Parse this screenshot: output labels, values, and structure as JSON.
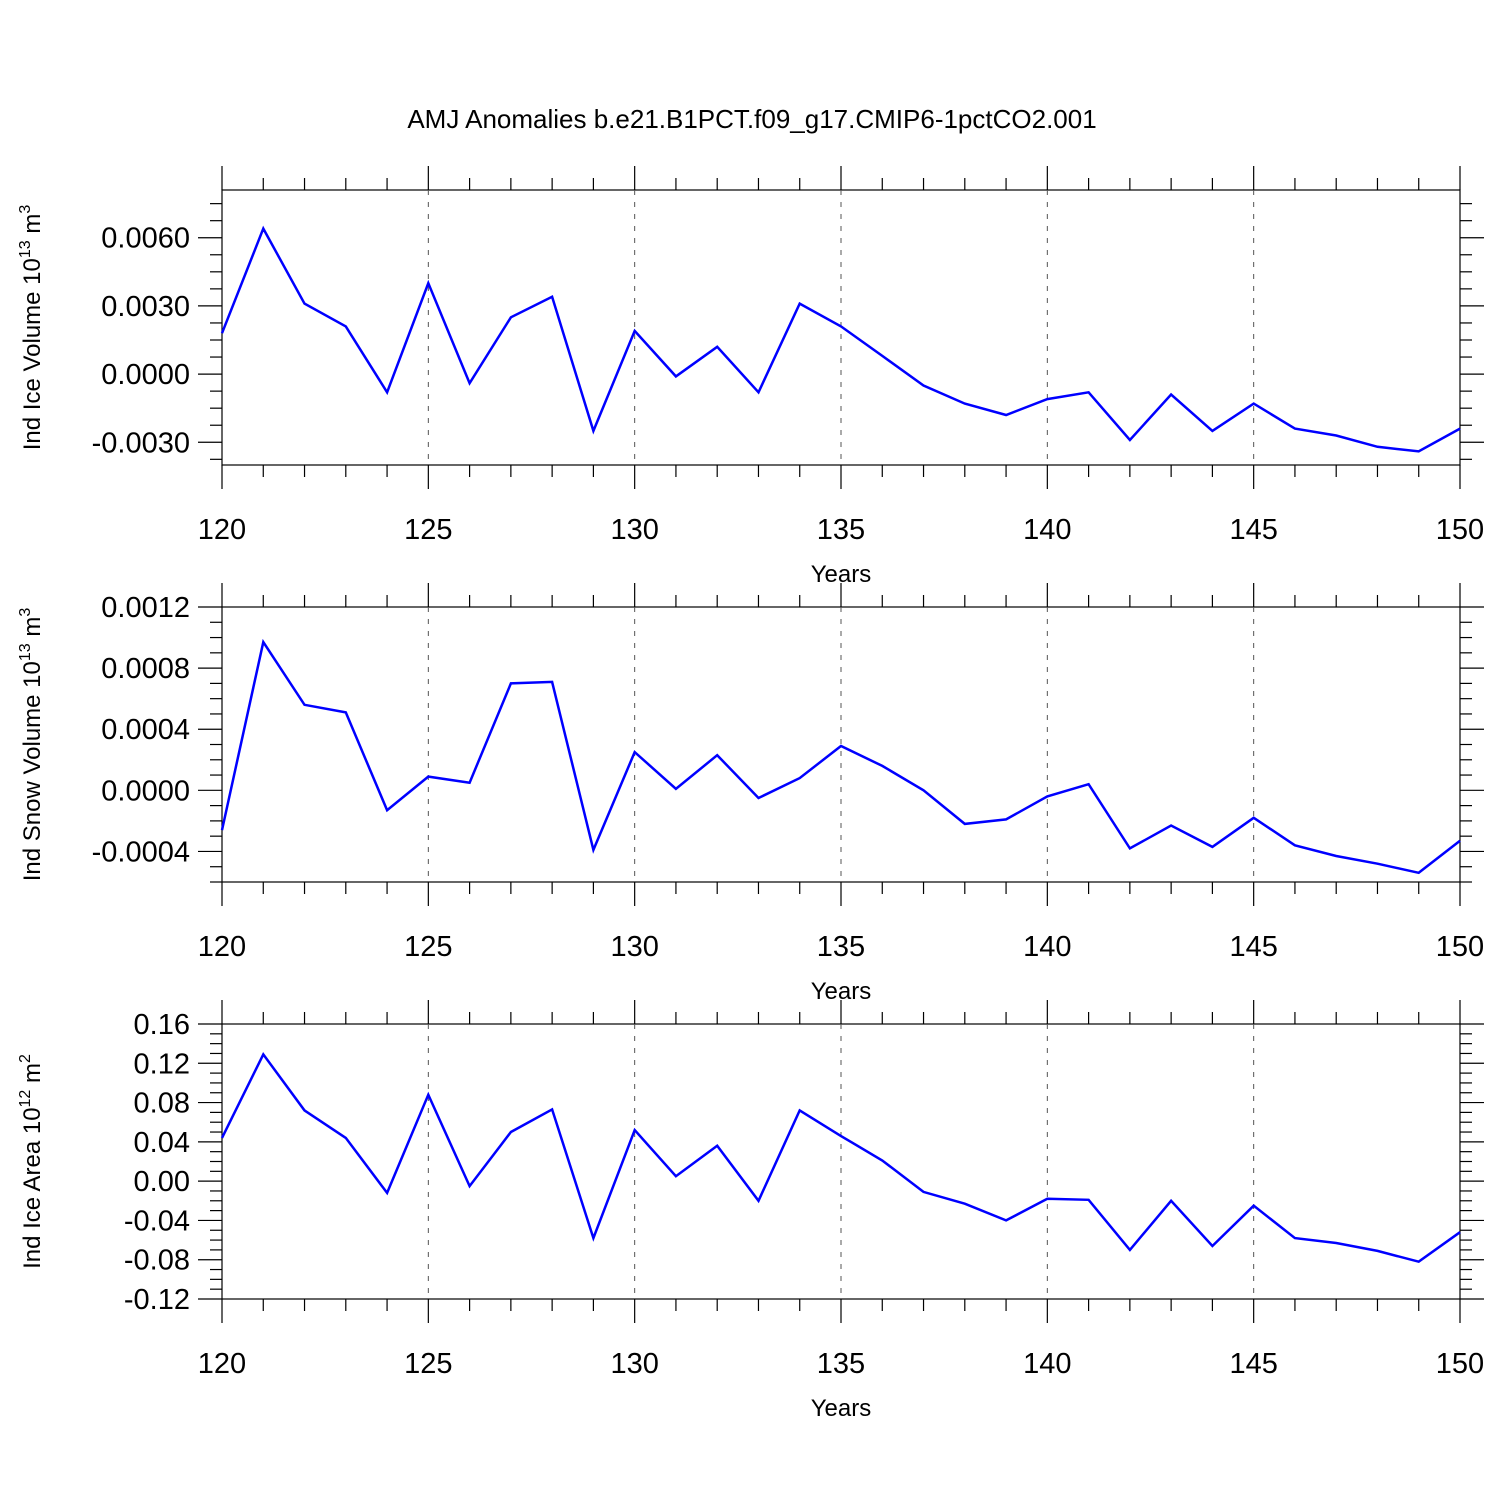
{
  "title": "AMJ Anomalies b.e21.B1PCT.f09_g17.CMIP6-1pctCO2.001",
  "colors": {
    "series": "#0000ff",
    "grid": "#555555",
    "frame": "#000000"
  },
  "chart_data": [
    {
      "type": "line",
      "title": "",
      "xlabel": "Years",
      "ylabel_main": "Ind Ice Volume 10",
      "ylabel_exp": "13",
      "ylabel_unit": " m",
      "ylabel_unit_exp": "3",
      "xlim": [
        120,
        150
      ],
      "ylim": [
        -0.004,
        0.0081
      ],
      "x_ticks": [
        "120",
        "125",
        "130",
        "135",
        "140",
        "145",
        "150"
      ],
      "y_ticks": [
        {
          "value": 0.006,
          "label": "0.0060"
        },
        {
          "value": 0.003,
          "label": "0.0030"
        },
        {
          "value": 0.0,
          "label": "0.0000"
        },
        {
          "value": -0.003,
          "label": "-0.0030"
        }
      ],
      "grid": "vertical dashed at major x ticks",
      "x": [
        120,
        121,
        122,
        123,
        124,
        125,
        126,
        127,
        128,
        129,
        130,
        131,
        132,
        133,
        134,
        135,
        136,
        137,
        138,
        139,
        140,
        141,
        142,
        143,
        144,
        145,
        146,
        147,
        148,
        149,
        150
      ],
      "values": [
        0.0018,
        0.0064,
        0.0031,
        0.0021,
        -0.0008,
        0.004,
        -0.0004,
        0.0025,
        0.0034,
        -0.0025,
        0.0019,
        -0.0001,
        0.0012,
        -0.0008,
        0.0031,
        0.0021,
        0.0008,
        -0.0005,
        -0.0013,
        -0.0018,
        -0.0011,
        -0.0008,
        -0.0029,
        -0.0009,
        -0.0025,
        -0.0013,
        -0.0024,
        -0.0027,
        -0.0032,
        -0.0034,
        -0.0024
      ]
    },
    {
      "type": "line",
      "title": "",
      "xlabel": "Years",
      "ylabel_main": "Ind Snow Volume 10",
      "ylabel_exp": "13",
      "ylabel_unit": " m",
      "ylabel_unit_exp": "3",
      "xlim": [
        120,
        150
      ],
      "ylim": [
        -0.0006,
        0.0012
      ],
      "x_ticks": [
        "120",
        "125",
        "130",
        "135",
        "140",
        "145",
        "150"
      ],
      "y_ticks": [
        {
          "value": 0.0012,
          "label": "0.0012"
        },
        {
          "value": 0.0008,
          "label": "0.0008"
        },
        {
          "value": 0.0004,
          "label": "0.0004"
        },
        {
          "value": 0.0,
          "label": "0.0000"
        },
        {
          "value": -0.0004,
          "label": "-0.0004"
        }
      ],
      "grid": "vertical dashed at major x ticks",
      "x": [
        120,
        121,
        122,
        123,
        124,
        125,
        126,
        127,
        128,
        129,
        130,
        131,
        132,
        133,
        134,
        135,
        136,
        137,
        138,
        139,
        140,
        141,
        142,
        143,
        144,
        145,
        146,
        147,
        148,
        149,
        150
      ],
      "values": [
        -0.00026,
        0.00097,
        0.00056,
        0.00051,
        -0.00013,
        9e-05,
        5e-05,
        0.0007,
        0.00071,
        -0.00039,
        0.00025,
        1e-05,
        0.00023,
        -5e-05,
        8e-05,
        0.00029,
        0.00016,
        0.0,
        -0.00022,
        -0.00019,
        -4e-05,
        4e-05,
        -0.00038,
        -0.00023,
        -0.00037,
        -0.00018,
        -0.00036,
        -0.00043,
        -0.00048,
        -0.00054,
        -0.00033
      ]
    },
    {
      "type": "line",
      "title": "",
      "xlabel": "Years",
      "ylabel_main": "Ind Ice Area 10",
      "ylabel_exp": "12",
      "ylabel_unit": " m",
      "ylabel_unit_exp": "2",
      "xlim": [
        120,
        150
      ],
      "ylim": [
        -0.12,
        0.16
      ],
      "x_ticks": [
        "120",
        "125",
        "130",
        "135",
        "140",
        "145",
        "150"
      ],
      "y_ticks": [
        {
          "value": 0.16,
          "label": "0.16"
        },
        {
          "value": 0.12,
          "label": "0.12"
        },
        {
          "value": 0.08,
          "label": "0.08"
        },
        {
          "value": 0.04,
          "label": "0.04"
        },
        {
          "value": 0.0,
          "label": "0.00"
        },
        {
          "value": -0.04,
          "label": "-0.04"
        },
        {
          "value": -0.08,
          "label": "-0.08"
        },
        {
          "value": -0.12,
          "label": "-0.12"
        }
      ],
      "grid": "vertical dashed at major x ticks",
      "x": [
        120,
        121,
        122,
        123,
        124,
        125,
        126,
        127,
        128,
        129,
        130,
        131,
        132,
        133,
        134,
        135,
        136,
        137,
        138,
        139,
        140,
        141,
        142,
        143,
        144,
        145,
        146,
        147,
        148,
        149,
        150
      ],
      "values": [
        0.044,
        0.129,
        0.072,
        0.044,
        -0.012,
        0.088,
        -0.005,
        0.05,
        0.073,
        -0.058,
        0.052,
        0.005,
        0.036,
        -0.02,
        0.072,
        0.046,
        0.021,
        -0.011,
        -0.023,
        -0.04,
        -0.018,
        -0.019,
        -0.07,
        -0.02,
        -0.066,
        -0.025,
        -0.058,
        -0.063,
        -0.071,
        -0.082,
        -0.052
      ]
    }
  ]
}
